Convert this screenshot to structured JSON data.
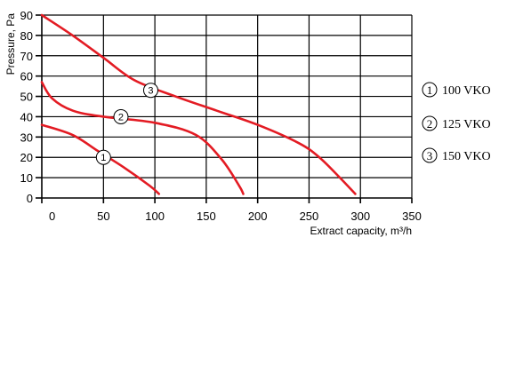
{
  "chart_data": {
    "type": "line",
    "xlabel": "Extract capacity, m³/h",
    "ylabel": "Pressure, Pa",
    "xlim": [
      -10,
      350
    ],
    "ylim": [
      0,
      90
    ],
    "x_ticks": [
      0,
      50,
      100,
      150,
      200,
      250,
      300,
      350
    ],
    "y_ticks": [
      0,
      10,
      20,
      30,
      40,
      50,
      60,
      70,
      80,
      90
    ],
    "grid": true,
    "line_color": "#e31b23",
    "series": [
      {
        "name": "100 VKO",
        "marker": "1",
        "marker_at": [
          50,
          20
        ],
        "points": [
          [
            -10,
            36
          ],
          [
            20,
            31
          ],
          [
            45,
            23
          ],
          [
            70,
            15
          ],
          [
            95,
            6
          ],
          [
            104,
            2
          ]
        ]
      },
      {
        "name": "125 VKO",
        "marker": "2",
        "marker_at": [
          67,
          40
        ],
        "points": [
          [
            -10,
            57
          ],
          [
            0,
            49
          ],
          [
            20,
            43
          ],
          [
            50,
            40
          ],
          [
            100,
            37
          ],
          [
            140,
            31
          ],
          [
            165,
            19
          ],
          [
            182,
            6
          ],
          [
            186,
            2
          ]
        ]
      },
      {
        "name": "150 VKO",
        "marker": "3",
        "marker_at": [
          96,
          53
        ],
        "points": [
          [
            -10,
            90
          ],
          [
            20,
            80
          ],
          [
            50,
            69
          ],
          [
            80,
            58
          ],
          [
            120,
            50
          ],
          [
            160,
            43
          ],
          [
            200,
            36
          ],
          [
            240,
            27
          ],
          [
            260,
            20
          ],
          [
            280,
            10
          ],
          [
            295,
            2
          ]
        ]
      }
    ],
    "legend": {
      "placement": "right",
      "entries": [
        {
          "number": "1",
          "label": "100 VKO"
        },
        {
          "number": "2",
          "label": "125 VKO"
        },
        {
          "number": "3",
          "label": "150 VKO"
        }
      ]
    }
  }
}
